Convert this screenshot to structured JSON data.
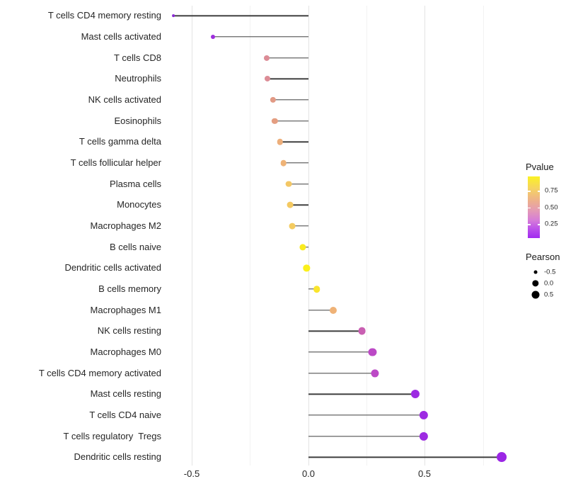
{
  "x_axis": {
    "ticks": [
      {
        "label": "-0.5",
        "value": -0.5
      },
      {
        "label": "0.0",
        "value": 0.0
      },
      {
        "label": "0.5",
        "value": 0.5
      }
    ]
  },
  "legend": {
    "pvalue": {
      "title": "Pvalue",
      "tick_labels": [
        "0.75",
        "0.50",
        "0.25"
      ],
      "tick_values": [
        0.75,
        0.5,
        0.25
      ],
      "gradient_colors": [
        "#FBF224",
        "#F5D263",
        "#EDAF8D",
        "#E49BB4",
        "#D77FD6",
        "#BC52EA",
        "#A02AF0"
      ]
    },
    "pearson": {
      "title": "Pearson",
      "entries": [
        {
          "label": "-0.5",
          "value": -0.5
        },
        {
          "label": "0.0",
          "value": 0.0
        },
        {
          "label": "0.5",
          "value": 0.5
        }
      ]
    }
  },
  "chart_data": {
    "type": "scatter",
    "subtype": "horizontal-lollipop",
    "title": "",
    "xlabel": "",
    "ylabel": "",
    "xlim": [
      -0.62,
      0.88
    ],
    "x_ticks": [
      -0.5,
      0.0,
      0.5
    ],
    "x_minor_ticks": [
      -0.25,
      0.25,
      0.75
    ],
    "grid": "vertical-only",
    "legend_position": "right",
    "color_variable": "Pvalue",
    "size_variable": "Pearson",
    "categories": [
      "T cells CD4 memory resting",
      "Mast cells activated",
      "T cells CD8",
      "Neutrophils",
      "NK cells activated",
      "Eosinophils",
      "T cells gamma delta",
      "T cells follicular helper",
      "Plasma cells",
      "Monocytes",
      "Macrophages M2",
      "B cells naive",
      "Dendritic cells activated",
      "B cells memory",
      "Macrophages M1",
      "NK cells resting",
      "Macrophages M0",
      "T cells CD4 memory activated",
      "Mast cells resting",
      "T cells CD4 naive",
      "T cells regulatory  Tregs",
      "Dendritic cells resting"
    ],
    "series": [
      {
        "name": "Pearson",
        "values": [
          -0.58,
          -0.41,
          -0.18,
          -0.177,
          -0.152,
          -0.145,
          -0.122,
          -0.107,
          -0.084,
          -0.078,
          -0.071,
          -0.025,
          -0.008,
          0.035,
          0.105,
          0.23,
          0.275,
          0.285,
          0.46,
          0.495,
          0.494,
          0.83
        ]
      }
    ],
    "point_colors": [
      "#8A2BD3",
      "#9D2EDC",
      "#DC8C96",
      "#DC8C96",
      "#E29A85",
      "#E49E81",
      "#EDAF7B",
      "#EFB377",
      "#F3C765",
      "#F4C961",
      "#F4CB5F",
      "#FAEB1F",
      "#FBF01B",
      "#FAE52C",
      "#EFB277",
      "#C95FB2",
      "#BC49C6",
      "#BC49C6",
      "#9D2BE2",
      "#9D2BE2",
      "#9D2BE2",
      "#9B26E5"
    ],
    "stem_color": "#3f3f3f"
  }
}
